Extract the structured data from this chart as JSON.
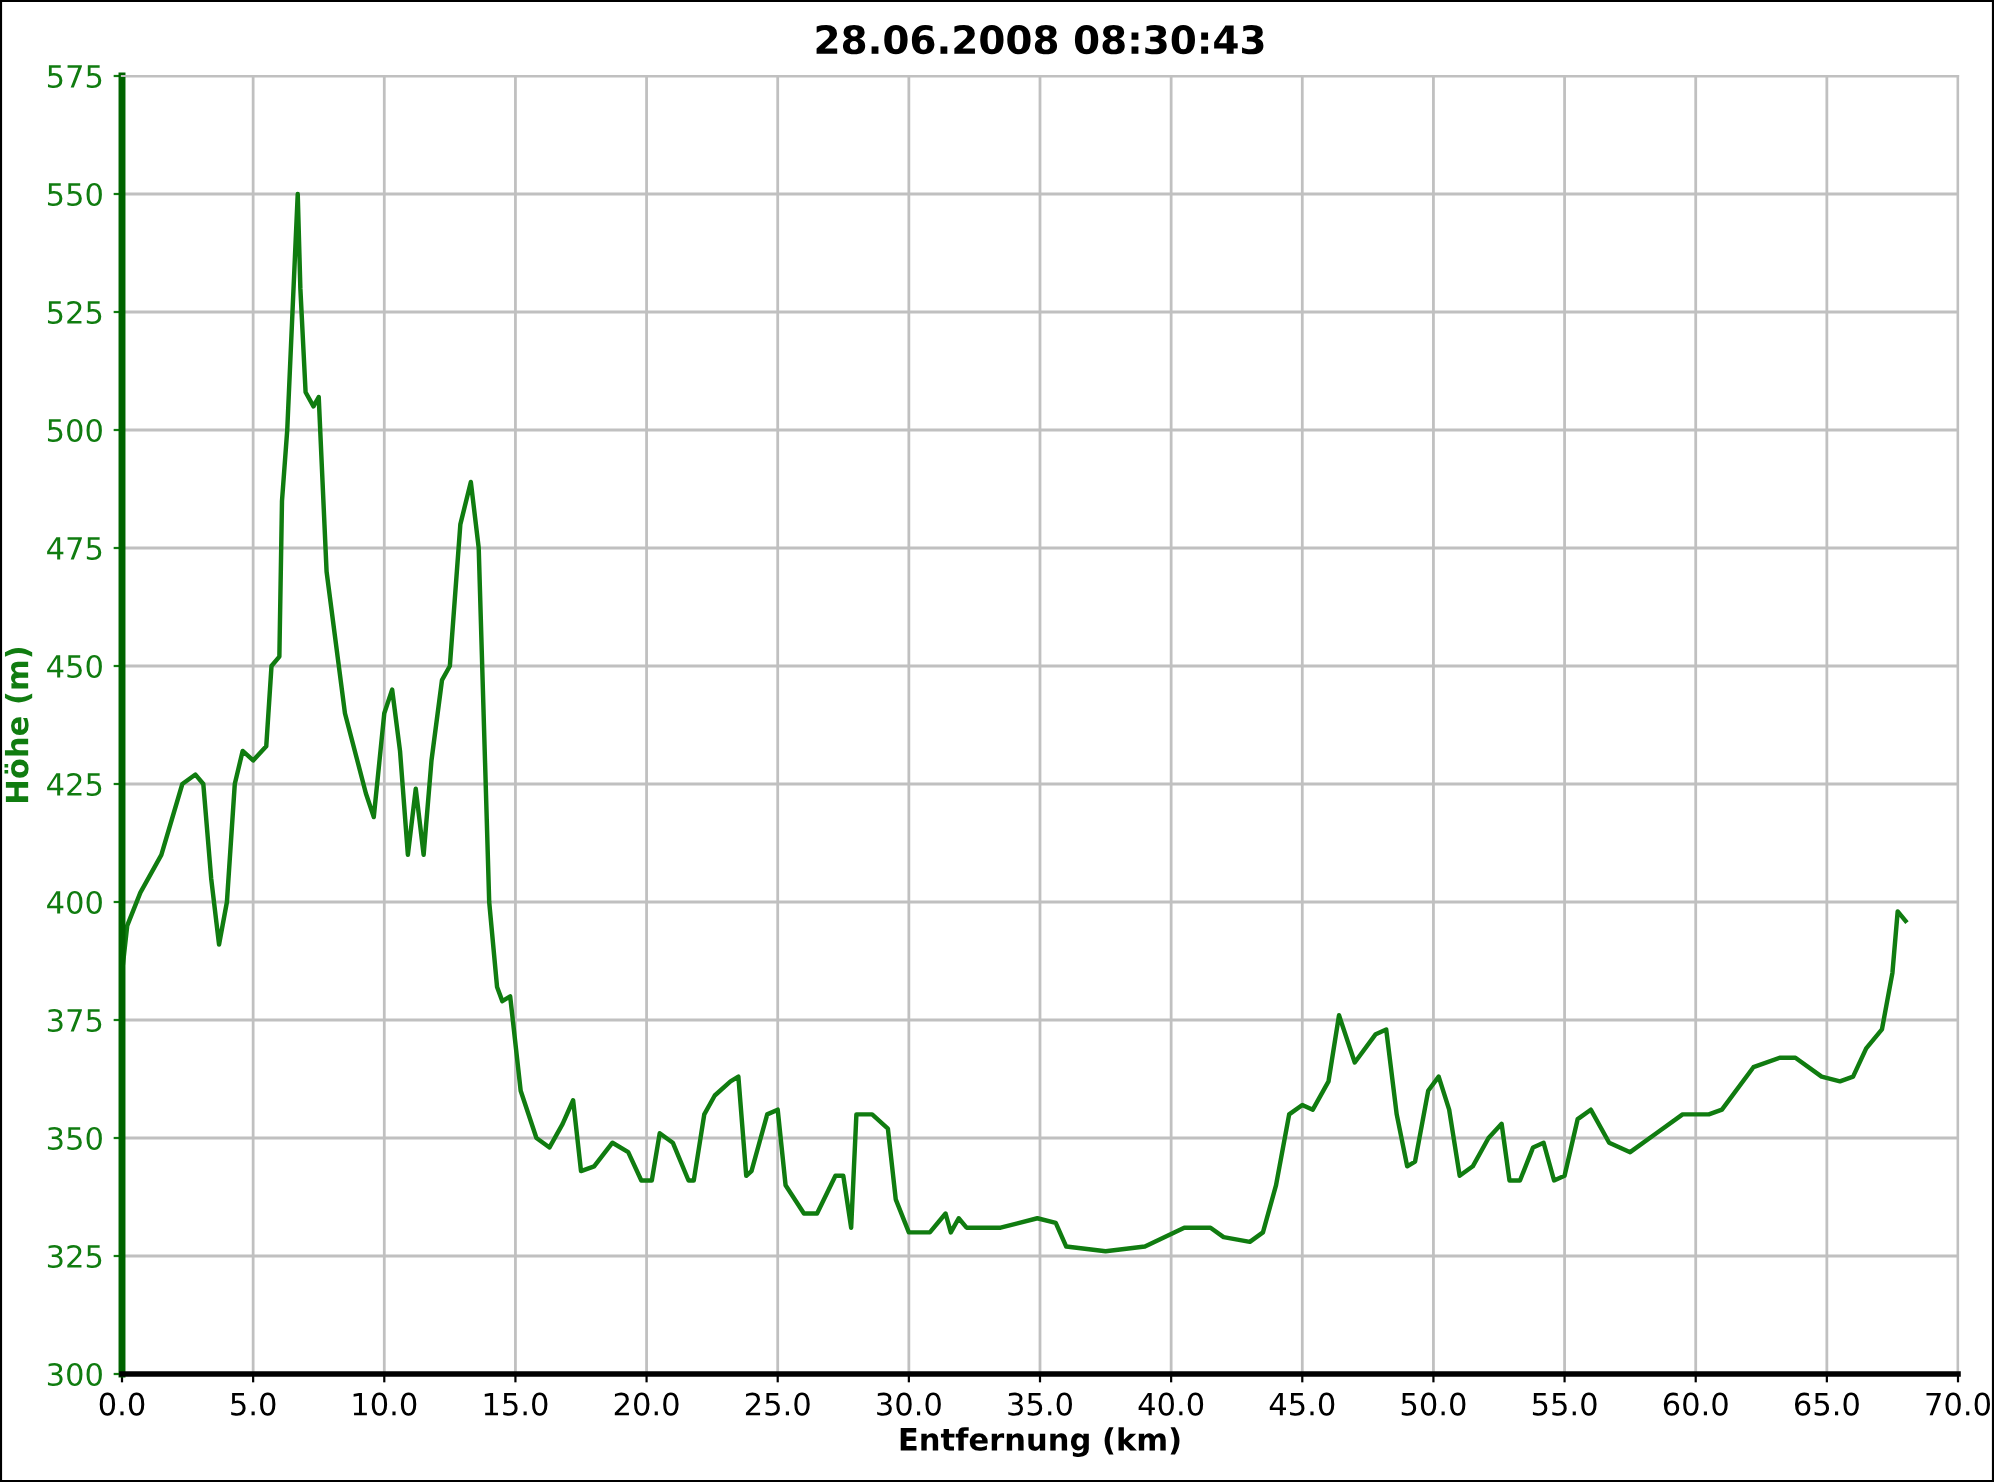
{
  "chart_data": {
    "type": "line",
    "title": "28.06.2008 08:30:43",
    "xlabel": "Entfernung (km)",
    "ylabel": "Höhe (m)",
    "xlim": [
      0,
      70
    ],
    "ylim": [
      300,
      575
    ],
    "xticks": [
      {
        "value": 0,
        "label": "0.0"
      },
      {
        "value": 5,
        "label": "5.0"
      },
      {
        "value": 10,
        "label": "10.0"
      },
      {
        "value": 15,
        "label": "15.0"
      },
      {
        "value": 20,
        "label": "20.0"
      },
      {
        "value": 25,
        "label": "25.0"
      },
      {
        "value": 30,
        "label": "30.0"
      },
      {
        "value": 35,
        "label": "35.0"
      },
      {
        "value": 40,
        "label": "40.0"
      },
      {
        "value": 45,
        "label": "45.0"
      },
      {
        "value": 50,
        "label": "50.0"
      },
      {
        "value": 55,
        "label": "55.0"
      },
      {
        "value": 60,
        "label": "60.0"
      },
      {
        "value": 65,
        "label": "65.0"
      },
      {
        "value": 70,
        "label": "70.0"
      }
    ],
    "yticks": [
      300,
      325,
      350,
      375,
      400,
      425,
      450,
      475,
      500,
      525,
      550,
      575
    ],
    "grid": true,
    "marker": "none",
    "line_style": "solid",
    "series": [
      {
        "color": "#107c10",
        "x": [
          0.0,
          0.2,
          0.7,
          1.5,
          2.3,
          2.8,
          3.1,
          3.4,
          3.7,
          4.0,
          4.3,
          4.6,
          5.0,
          5.5,
          5.7,
          6.0,
          6.1,
          6.3,
          6.5,
          6.7,
          6.8,
          7.0,
          7.3,
          7.5,
          7.8,
          8.5,
          9.3,
          9.6,
          10.0,
          10.3,
          10.6,
          10.9,
          11.2,
          11.5,
          11.8,
          12.2,
          12.5,
          12.9,
          13.3,
          13.6,
          14.0,
          14.3,
          14.5,
          14.8,
          15.2,
          15.8,
          16.3,
          16.8,
          17.2,
          17.5,
          18.0,
          18.7,
          19.3,
          19.8,
          20.2,
          20.5,
          21.0,
          21.6,
          21.8,
          22.2,
          22.6,
          23.2,
          23.5,
          23.8,
          24.0,
          24.6,
          25.0,
          25.3,
          26.0,
          26.5,
          27.2,
          27.5,
          27.8,
          28.0,
          28.6,
          29.2,
          29.5,
          30.0,
          30.8,
          31.4,
          31.6,
          31.9,
          32.2,
          33.5,
          34.9,
          35.6,
          36.0,
          37.5,
          39.0,
          40.5,
          41.5,
          42.0,
          43.0,
          43.5,
          44.0,
          44.5,
          45.0,
          45.4,
          46.0,
          46.4,
          47.0,
          47.8,
          48.2,
          48.6,
          49.0,
          49.3,
          49.8,
          50.2,
          50.6,
          51.0,
          51.5,
          52.1,
          52.6,
          52.9,
          53.3,
          53.8,
          54.2,
          54.6,
          55.0,
          55.5,
          56.0,
          56.7,
          57.5,
          58.5,
          59.5,
          60.5,
          61.0,
          62.2,
          63.2,
          63.8,
          64.8,
          65.5,
          66.0,
          66.5,
          67.1,
          67.5,
          67.7,
          68.0
        ],
        "values": [
          385,
          395,
          402,
          410,
          425,
          427,
          425,
          405,
          391,
          400,
          425,
          432,
          430,
          433,
          450,
          452,
          485,
          500,
          525,
          550,
          530,
          508,
          505,
          507,
          470,
          440,
          423,
          418,
          440,
          445,
          432,
          410,
          424,
          410,
          430,
          447,
          450,
          480,
          489,
          475,
          400,
          382,
          379,
          380,
          360,
          350,
          348,
          353,
          358,
          343,
          344,
          349,
          347,
          341,
          341,
          351,
          349,
          341,
          341,
          355,
          359,
          362,
          363,
          342,
          343,
          355,
          356,
          340,
          334,
          334,
          342,
          342,
          331,
          355,
          355,
          352,
          337,
          330,
          330,
          334,
          330,
          333,
          331,
          331,
          333,
          332,
          327,
          326,
          327,
          331,
          331,
          329,
          328,
          330,
          340,
          355,
          357,
          356,
          362,
          376,
          366,
          372,
          373,
          355,
          344,
          345,
          360,
          363,
          356,
          342,
          344,
          350,
          353,
          341,
          341,
          348,
          349,
          341,
          342,
          354,
          356,
          349,
          347,
          351,
          355,
          355,
          356,
          365,
          367,
          367,
          363,
          362,
          363,
          369,
          373,
          385,
          398,
          396
        ]
      }
    ]
  }
}
